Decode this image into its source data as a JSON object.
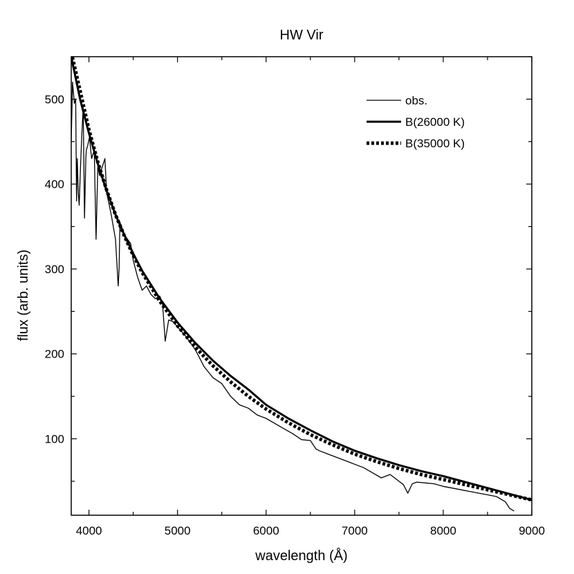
{
  "chart_data": {
    "type": "line",
    "title": "HW Vir",
    "xlabel": "wavelength (Å)",
    "ylabel": "flux (arb. units)",
    "xlim": [
      3800,
      9000
    ],
    "ylim": [
      10,
      550
    ],
    "x_ticks": [
      4000,
      5000,
      6000,
      7000,
      8000,
      9000
    ],
    "y_ticks": [
      100,
      200,
      300,
      400,
      500
    ],
    "grid": false,
    "legend_position": "top-right",
    "series": [
      {
        "name": "obs.",
        "style": "thin-solid",
        "x": [
          3800,
          3815,
          3835,
          3850,
          3860,
          3868,
          3880,
          3890,
          3905,
          3920,
          3935,
          3950,
          3965,
          3970,
          3985,
          4005,
          4030,
          4060,
          4080,
          4100,
          4101,
          4120,
          4150,
          4180,
          4200,
          4250,
          4300,
          4330,
          4340,
          4350,
          4400,
          4471,
          4500,
          4550,
          4600,
          4650,
          4700,
          4750,
          4800,
          4830,
          4861,
          4900,
          4950,
          5000,
          5100,
          5200,
          5300,
          5400,
          5500,
          5600,
          5700,
          5800,
          5900,
          6000,
          6100,
          6200,
          6300,
          6400,
          6500,
          6563,
          6600,
          6700,
          6800,
          6900,
          7000,
          7100,
          7200,
          7300,
          7400,
          7500,
          7550,
          7600,
          7650,
          7700,
          7800,
          7900,
          8000,
          8100,
          8200,
          8300,
          8400,
          8500,
          8600,
          8700,
          8750,
          8800
        ],
        "y": [
          450,
          520,
          495,
          500,
          380,
          430,
          390,
          375,
          420,
          460,
          490,
          360,
          430,
          440,
          445,
          455,
          430,
          440,
          335,
          420,
          420,
          410,
          420,
          430,
          390,
          365,
          335,
          280,
          300,
          355,
          340,
          330,
          310,
          290,
          275,
          280,
          270,
          265,
          268,
          260,
          215,
          240,
          238,
          232,
          220,
          205,
          185,
          172,
          165,
          150,
          140,
          136,
          128,
          124,
          118,
          112,
          106,
          99,
          98,
          88,
          86,
          82,
          78,
          74,
          70,
          66,
          60,
          54,
          58,
          50,
          46,
          36,
          47,
          49,
          48,
          47,
          44,
          42,
          40,
          38,
          36,
          34,
          32,
          26,
          18,
          15
        ]
      },
      {
        "name": "B(26000 K)",
        "style": "thick-solid",
        "x": [
          3800,
          3900,
          4000,
          4100,
          4200,
          4300,
          4400,
          4500,
          4600,
          4800,
          5000,
          5200,
          5400,
          5600,
          5800,
          6000,
          6250,
          6500,
          6750,
          7000,
          7250,
          7500,
          7750,
          8000,
          8250,
          8500,
          8750,
          9000
        ],
        "y": [
          550,
          500,
          460,
          424,
          392,
          364,
          340,
          318,
          298,
          265,
          237,
          213,
          192,
          174,
          158,
          140,
          124,
          110,
          97,
          86,
          77,
          69,
          62,
          56,
          49,
          42,
          35,
          28
        ]
      },
      {
        "name": "B(35000 K)",
        "style": "dotted",
        "x": [
          3800,
          3900,
          4000,
          4100,
          4200,
          4300,
          4400,
          4500,
          4600,
          4800,
          5000,
          5200,
          5400,
          5600,
          5800,
          6000,
          6250,
          6500,
          6750,
          7000,
          7250,
          7500,
          7750,
          8000,
          8250,
          8500,
          8750,
          9000
        ],
        "y": [
          555,
          510,
          464,
          426,
          393,
          364,
          339,
          316,
          296,
          262,
          233,
          208,
          186,
          167,
          150,
          135,
          119,
          105,
          93,
          82,
          73,
          65,
          58,
          52,
          46,
          40,
          34,
          28
        ]
      }
    ]
  }
}
